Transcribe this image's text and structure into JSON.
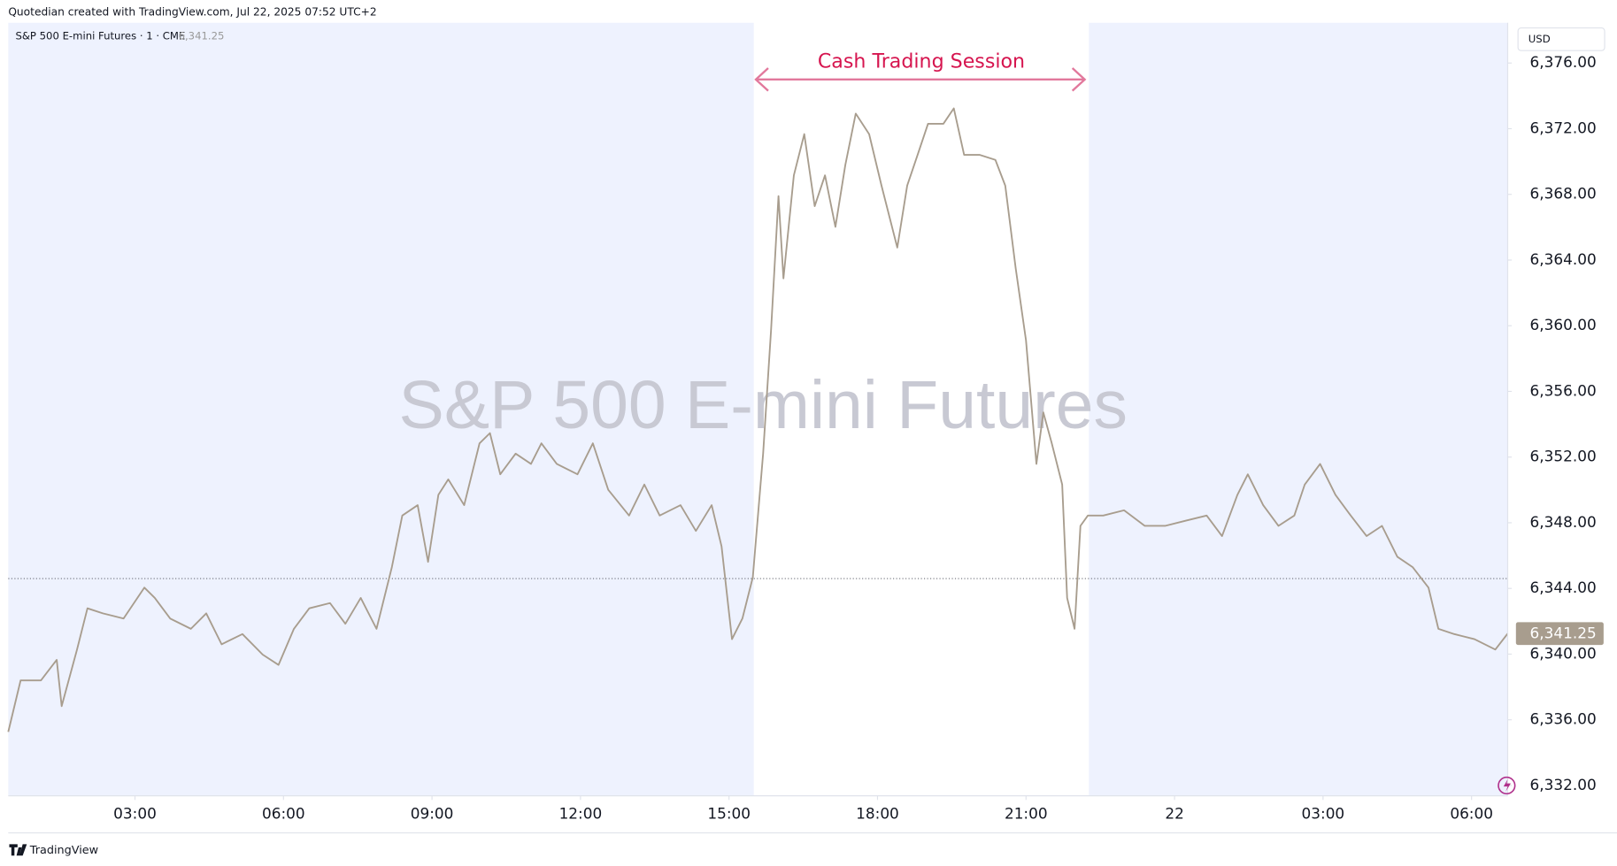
{
  "header": "Quotedian created with TradingView.com, Jul 22, 2025 07:52 UTC+2",
  "footer": "TradingView",
  "chart_data": {
    "type": "line",
    "legend_title": "S&P 500 E-mini Futures · 1 · CME",
    "watermark": "S&P 500 E-mini Futures",
    "currency": "USD",
    "last_price": {
      "value": 6341.25,
      "label": "6,341.25"
    },
    "reference_line": 6344.6,
    "session": {
      "label": "Cash Trading Session",
      "start": 15.5,
      "end": 22.27
    },
    "shade_color": "#eef2fe",
    "xlim": [
      0.44,
      30.73
    ],
    "xticks": [
      {
        "value": 3,
        "label": "03:00"
      },
      {
        "value": 6,
        "label": "06:00"
      },
      {
        "value": 9,
        "label": "09:00"
      },
      {
        "value": 12,
        "label": "12:00"
      },
      {
        "value": 15,
        "label": "15:00"
      },
      {
        "value": 18,
        "label": "18:00"
      },
      {
        "value": 21,
        "label": "21:00"
      },
      {
        "value": 24,
        "label": "22"
      },
      {
        "value": 27,
        "label": "03:00"
      },
      {
        "value": 30,
        "label": "06:00"
      }
    ],
    "ylim": [
      6331.37,
      6378.45
    ],
    "yticks": [
      {
        "value": 6332,
        "label": "6,332.00"
      },
      {
        "value": 6336,
        "label": "6,336.00"
      },
      {
        "value": 6340,
        "label": "6,340.00"
      },
      {
        "value": 6344,
        "label": "6,344.00"
      },
      {
        "value": 6348,
        "label": "6,348.00"
      },
      {
        "value": 6352,
        "label": "6,352.00"
      },
      {
        "value": 6356,
        "label": "6,356.00"
      },
      {
        "value": 6360,
        "label": "6,360.00"
      },
      {
        "value": 6364,
        "label": "6,364.00"
      },
      {
        "value": 6368,
        "label": "6,368.00"
      },
      {
        "value": 6372,
        "label": "6,372.00"
      },
      {
        "value": 6376,
        "label": "6,376.00"
      }
    ],
    "x": [
      0.44,
      0.69,
      1.1,
      1.42,
      1.52,
      1.83,
      2.04,
      2.35,
      2.77,
      3.19,
      3.4,
      3.71,
      4.13,
      4.44,
      4.75,
      5.17,
      5.58,
      5.9,
      6.21,
      6.52,
      6.94,
      7.25,
      7.56,
      7.88,
      8.19,
      8.4,
      8.71,
      8.92,
      9.13,
      9.33,
      9.65,
      9.96,
      10.17,
      10.38,
      10.69,
      11.0,
      11.21,
      11.52,
      11.94,
      12.25,
      12.56,
      12.98,
      13.29,
      13.6,
      14.02,
      14.33,
      14.65,
      14.85,
      15.06,
      15.27,
      15.48,
      15.69,
      15.85,
      16.0,
      16.1,
      16.31,
      16.52,
      16.73,
      16.94,
      17.15,
      17.35,
      17.56,
      17.83,
      18.08,
      18.4,
      18.6,
      18.81,
      19.02,
      19.33,
      19.54,
      19.75,
      20.06,
      20.38,
      20.58,
      20.79,
      21.0,
      21.21,
      21.35,
      21.52,
      21.73,
      21.83,
      21.98,
      22.1,
      22.25,
      22.56,
      22.98,
      23.4,
      23.81,
      24.23,
      24.65,
      24.96,
      25.27,
      25.48,
      25.79,
      26.1,
      26.42,
      26.63,
      26.94,
      27.25,
      27.56,
      27.88,
      28.19,
      28.5,
      28.81,
      29.13,
      29.33,
      29.65,
      30.06,
      30.48,
      30.73
    ],
    "series": [
      {
        "name": "S&P 500 E-mini Futures",
        "color": "#a89d8e",
        "values": [
          6335.26,
          6338.4,
          6338.4,
          6339.65,
          6336.83,
          6340.28,
          6342.79,
          6342.48,
          6342.17,
          6344.05,
          6343.42,
          6342.17,
          6341.54,
          6342.48,
          6340.6,
          6341.22,
          6339.97,
          6339.34,
          6341.54,
          6342.79,
          6343.11,
          6341.85,
          6343.42,
          6341.54,
          6345.3,
          6348.44,
          6349.07,
          6345.62,
          6349.7,
          6350.64,
          6349.07,
          6352.84,
          6353.46,
          6350.95,
          6352.21,
          6351.58,
          6352.84,
          6351.58,
          6350.95,
          6352.84,
          6350.01,
          6348.44,
          6350.33,
          6348.44,
          6349.07,
          6347.5,
          6349.07,
          6346.56,
          6340.91,
          6342.17,
          6344.68,
          6352.21,
          6359.74,
          6367.9,
          6362.88,
          6369.16,
          6371.67,
          6367.28,
          6369.16,
          6366.02,
          6369.79,
          6372.92,
          6371.67,
          6368.53,
          6364.76,
          6368.53,
          6370.41,
          6372.3,
          6372.3,
          6373.24,
          6370.41,
          6370.41,
          6370.1,
          6368.53,
          6363.51,
          6359.11,
          6351.58,
          6354.72,
          6352.84,
          6350.33,
          6343.42,
          6341.54,
          6347.81,
          6348.44,
          6348.44,
          6348.76,
          6347.81,
          6347.81,
          6348.13,
          6348.44,
          6347.19,
          6349.7,
          6350.95,
          6349.07,
          6347.81,
          6348.44,
          6350.33,
          6351.58,
          6349.7,
          6348.44,
          6347.19,
          6347.81,
          6345.93,
          6345.3,
          6344.05,
          6341.54,
          6341.22,
          6340.91,
          6340.28,
          6341.25
        ]
      }
    ]
  }
}
